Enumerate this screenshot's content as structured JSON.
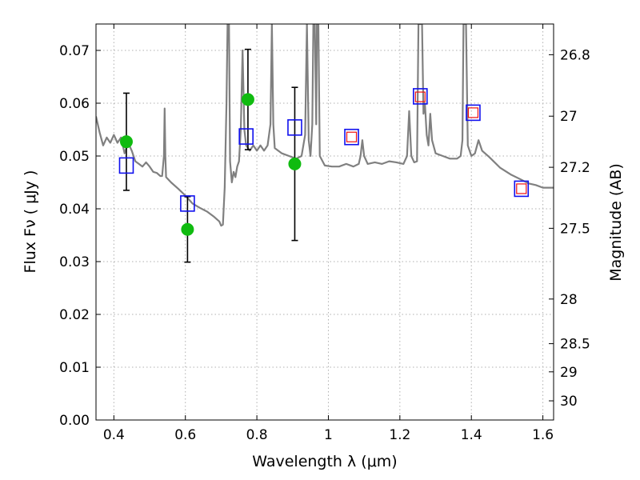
{
  "chart_data": {
    "type": "scatter",
    "xlabel": "Wavelength  λ (μm)",
    "ylabel": "Flux  Fν  ( μJy )",
    "y2label": "Magnitude (AB)",
    "xlim": [
      0.35,
      1.63
    ],
    "ylim": [
      0.0,
      0.075
    ],
    "grid": true,
    "x_ticks": [
      0.4,
      0.6,
      0.8,
      1.0,
      1.2,
      1.4,
      1.6
    ],
    "x_tick_labels": [
      "0.4",
      "0.6",
      "0.8",
      "1",
      "1.2",
      "1.4",
      "1.6"
    ],
    "y_ticks": [
      0.0,
      0.01,
      0.02,
      0.03,
      0.04,
      0.05,
      0.06,
      0.07
    ],
    "y_tick_labels": [
      "0.00",
      "0.01",
      "0.02",
      "0.03",
      "0.04",
      "0.05",
      "0.06",
      "0.07"
    ],
    "y2_ticks": [
      26.8,
      27,
      27.2,
      27.5,
      28,
      28.5,
      29,
      30
    ],
    "y2_tick_labels": [
      "26.8",
      "27",
      "27.2",
      "27.5",
      "28",
      "28.5",
      "29",
      "30"
    ],
    "observed_points": [
      {
        "x": 0.435,
        "y": 0.0527,
        "err": 0.0092
      },
      {
        "x": 0.606,
        "y": 0.0361,
        "err": 0.0062
      },
      {
        "x": 0.775,
        "y": 0.0607,
        "err": 0.0095
      },
      {
        "x": 0.906,
        "y": 0.0485,
        "err": 0.0145
      }
    ],
    "model_photometry": [
      {
        "x": 0.435,
        "y": 0.0482
      },
      {
        "x": 0.606,
        "y": 0.041
      },
      {
        "x": 0.77,
        "y": 0.0537
      },
      {
        "x": 0.906,
        "y": 0.0554
      },
      {
        "x": 1.065,
        "y": 0.0536
      },
      {
        "x": 1.257,
        "y": 0.0613
      },
      {
        "x": 1.405,
        "y": 0.0582
      },
      {
        "x": 1.54,
        "y": 0.0438
      }
    ],
    "predicted_points": [
      {
        "x": 1.065,
        "y": 0.0536
      },
      {
        "x": 1.257,
        "y": 0.0612
      },
      {
        "x": 1.405,
        "y": 0.0582
      },
      {
        "x": 1.54,
        "y": 0.0438
      }
    ],
    "spectrum": [
      [
        0.35,
        0.0575
      ],
      [
        0.36,
        0.0545
      ],
      [
        0.37,
        0.052
      ],
      [
        0.38,
        0.0535
      ],
      [
        0.39,
        0.0525
      ],
      [
        0.4,
        0.054
      ],
      [
        0.41,
        0.0525
      ],
      [
        0.42,
        0.0535
      ],
      [
        0.43,
        0.0505
      ],
      [
        0.44,
        0.0525
      ],
      [
        0.45,
        0.051
      ],
      [
        0.46,
        0.049
      ],
      [
        0.47,
        0.0485
      ],
      [
        0.48,
        0.048
      ],
      [
        0.49,
        0.0488
      ],
      [
        0.5,
        0.048
      ],
      [
        0.51,
        0.047
      ],
      [
        0.52,
        0.0468
      ],
      [
        0.53,
        0.0462
      ],
      [
        0.535,
        0.0462
      ],
      [
        0.54,
        0.05
      ],
      [
        0.542,
        0.059
      ],
      [
        0.544,
        0.05
      ],
      [
        0.546,
        0.046
      ],
      [
        0.56,
        0.045
      ],
      [
        0.58,
        0.0438
      ],
      [
        0.6,
        0.0425
      ],
      [
        0.62,
        0.041
      ],
      [
        0.64,
        0.0402
      ],
      [
        0.66,
        0.0395
      ],
      [
        0.68,
        0.0385
      ],
      [
        0.695,
        0.0376
      ],
      [
        0.7,
        0.0368
      ],
      [
        0.705,
        0.037
      ],
      [
        0.71,
        0.044
      ],
      [
        0.715,
        0.06
      ],
      [
        0.718,
        0.075
      ],
      [
        0.722,
        0.075
      ],
      [
        0.725,
        0.049
      ],
      [
        0.73,
        0.045
      ],
      [
        0.735,
        0.047
      ],
      [
        0.74,
        0.046
      ],
      [
        0.745,
        0.048
      ],
      [
        0.75,
        0.049
      ],
      [
        0.755,
        0.055
      ],
      [
        0.76,
        0.07
      ],
      [
        0.765,
        0.055
      ],
      [
        0.77,
        0.052
      ],
      [
        0.78,
        0.051
      ],
      [
        0.79,
        0.052
      ],
      [
        0.8,
        0.051
      ],
      [
        0.81,
        0.052
      ],
      [
        0.82,
        0.051
      ],
      [
        0.83,
        0.052
      ],
      [
        0.838,
        0.056
      ],
      [
        0.842,
        0.075
      ],
      [
        0.846,
        0.056
      ],
      [
        0.85,
        0.0515
      ],
      [
        0.87,
        0.0505
      ],
      [
        0.89,
        0.05
      ],
      [
        0.91,
        0.0495
      ],
      [
        0.925,
        0.05
      ],
      [
        0.935,
        0.054
      ],
      [
        0.94,
        0.075
      ],
      [
        0.945,
        0.053
      ],
      [
        0.95,
        0.05
      ],
      [
        0.955,
        0.056
      ],
      [
        0.958,
        0.075
      ],
      [
        0.962,
        0.075
      ],
      [
        0.966,
        0.056
      ],
      [
        0.968,
        0.075
      ],
      [
        0.972,
        0.075
      ],
      [
        0.976,
        0.05
      ],
      [
        0.99,
        0.0482
      ],
      [
        1.01,
        0.048
      ],
      [
        1.03,
        0.048
      ],
      [
        1.05,
        0.0485
      ],
      [
        1.07,
        0.048
      ],
      [
        1.085,
        0.0485
      ],
      [
        1.09,
        0.05
      ],
      [
        1.095,
        0.053
      ],
      [
        1.1,
        0.05
      ],
      [
        1.11,
        0.0485
      ],
      [
        1.13,
        0.0488
      ],
      [
        1.15,
        0.0485
      ],
      [
        1.17,
        0.049
      ],
      [
        1.19,
        0.0488
      ],
      [
        1.21,
        0.0485
      ],
      [
        1.22,
        0.05
      ],
      [
        1.226,
        0.0585
      ],
      [
        1.232,
        0.05
      ],
      [
        1.24,
        0.0488
      ],
      [
        1.248,
        0.049
      ],
      [
        1.252,
        0.075
      ],
      [
        1.262,
        0.075
      ],
      [
        1.266,
        0.058
      ],
      [
        1.27,
        0.06
      ],
      [
        1.275,
        0.054
      ],
      [
        1.28,
        0.052
      ],
      [
        1.285,
        0.058
      ],
      [
        1.29,
        0.053
      ],
      [
        1.3,
        0.0505
      ],
      [
        1.32,
        0.05
      ],
      [
        1.34,
        0.0495
      ],
      [
        1.36,
        0.0495
      ],
      [
        1.37,
        0.05
      ],
      [
        1.375,
        0.053
      ],
      [
        1.378,
        0.075
      ],
      [
        1.385,
        0.075
      ],
      [
        1.39,
        0.052
      ],
      [
        1.4,
        0.05
      ],
      [
        1.41,
        0.0505
      ],
      [
        1.42,
        0.053
      ],
      [
        1.43,
        0.051
      ],
      [
        1.45,
        0.0498
      ],
      [
        1.48,
        0.0478
      ],
      [
        1.51,
        0.0465
      ],
      [
        1.54,
        0.0455
      ],
      [
        1.56,
        0.0448
      ],
      [
        1.58,
        0.0445
      ],
      [
        1.6,
        0.044
      ],
      [
        1.63,
        0.044
      ]
    ],
    "colors": {
      "spectrum": "#808080",
      "observed": "#10bb10",
      "model": "#1010ee",
      "predicted": "#ee1010",
      "errorbar": "#000000",
      "grid": "#b0b0b0"
    }
  }
}
